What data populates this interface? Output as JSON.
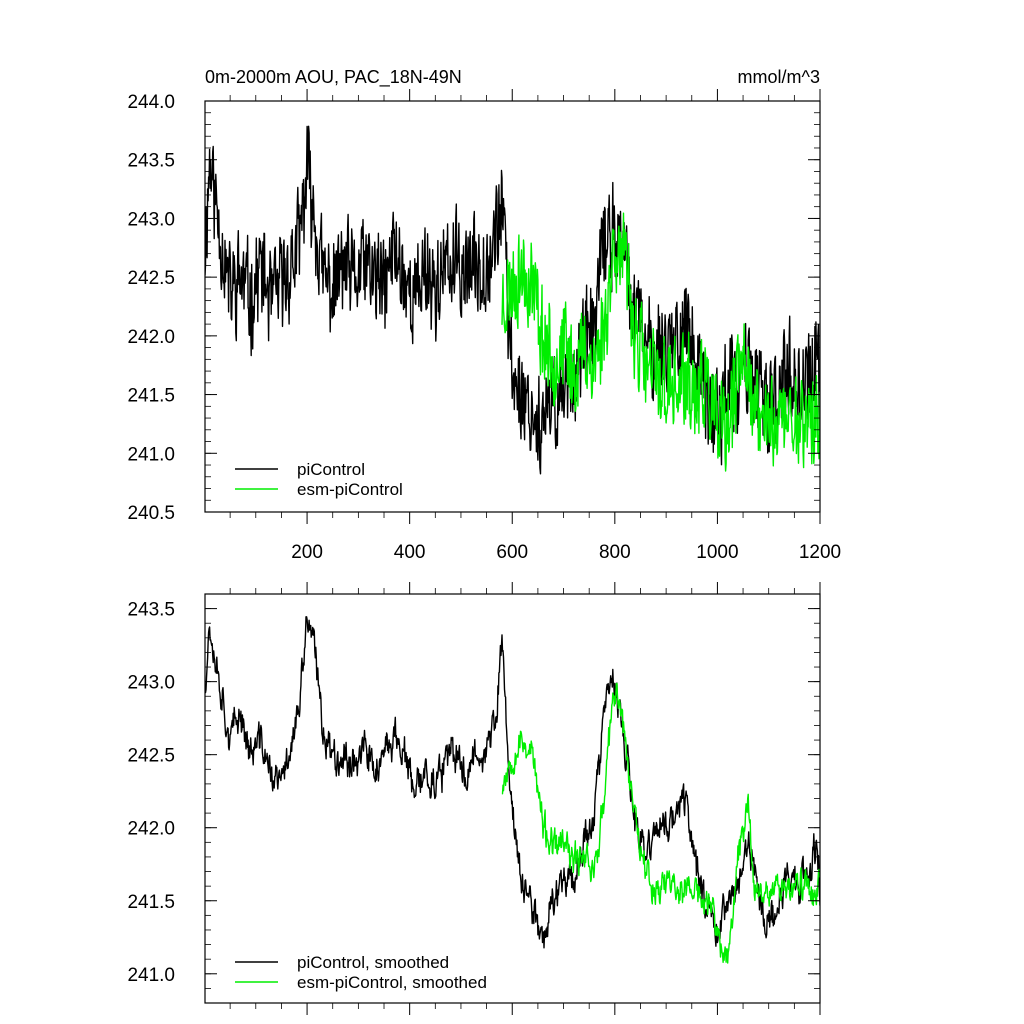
{
  "chart_data": [
    {
      "type": "line",
      "title": "0m-2000m AOU, PAC_18N-49N",
      "units": "mmol/m^3",
      "xlim": [
        1,
        1200
      ],
      "ylim": [
        240.5,
        244.0
      ],
      "x_ticks": [
        200,
        400,
        600,
        800,
        1000,
        1200
      ],
      "x_tick_labels": [
        "200",
        "400",
        "600",
        "800",
        "1000",
        "1200"
      ],
      "y_ticks": [
        240.5,
        241.0,
        241.5,
        242.0,
        242.5,
        243.0,
        243.5,
        244.0
      ],
      "y_tick_labels": [
        "240.5",
        "241.0",
        "241.5",
        "242.0",
        "242.5",
        "243.0",
        "243.5",
        "244.0"
      ],
      "legend_position": "bottom-left",
      "series": [
        {
          "name": "piControl",
          "color": "#000000",
          "x_start": 1,
          "x_end": 1200,
          "anchors": [
            [
              1,
              242.75
            ],
            [
              10,
              243.5
            ],
            [
              30,
              242.9
            ],
            [
              50,
              242.35
            ],
            [
              70,
              242.5
            ],
            [
              90,
              242.3
            ],
            [
              110,
              242.6
            ],
            [
              130,
              242.25
            ],
            [
              150,
              242.45
            ],
            [
              170,
              242.6
            ],
            [
              185,
              242.8
            ],
            [
              200,
              243.4
            ],
            [
              215,
              243.0
            ],
            [
              230,
              242.5
            ],
            [
              250,
              242.4
            ],
            [
              270,
              242.6
            ],
            [
              290,
              242.45
            ],
            [
              310,
              242.6
            ],
            [
              330,
              242.5
            ],
            [
              350,
              242.4
            ],
            [
              370,
              242.75
            ],
            [
              390,
              242.5
            ],
            [
              410,
              242.3
            ],
            [
              430,
              242.6
            ],
            [
              450,
              242.4
            ],
            [
              470,
              242.55
            ],
            [
              490,
              242.6
            ],
            [
              510,
              242.55
            ],
            [
              530,
              242.6
            ],
            [
              550,
              242.65
            ],
            [
              570,
              242.9
            ],
            [
              580,
              243.2
            ],
            [
              590,
              242.3
            ],
            [
              600,
              241.7
            ],
            [
              620,
              241.5
            ],
            [
              640,
              241.35
            ],
            [
              660,
              241.2
            ],
            [
              680,
              241.4
            ],
            [
              700,
              241.6
            ],
            [
              720,
              241.7
            ],
            [
              740,
              241.9
            ],
            [
              760,
              242.1
            ],
            [
              780,
              242.8
            ],
            [
              800,
              242.9
            ],
            [
              820,
              242.6
            ],
            [
              840,
              242.2
            ],
            [
              860,
              241.9
            ],
            [
              880,
              241.9
            ],
            [
              900,
              241.95
            ],
            [
              920,
              242.0
            ],
            [
              940,
              242.1
            ],
            [
              960,
              241.7
            ],
            [
              980,
              241.4
            ],
            [
              1000,
              241.3
            ],
            [
              1020,
              241.6
            ],
            [
              1040,
              241.5
            ],
            [
              1060,
              241.8
            ],
            [
              1080,
              241.5
            ],
            [
              1100,
              241.3
            ],
            [
              1120,
              241.6
            ],
            [
              1140,
              241.7
            ],
            [
              1160,
              241.6
            ],
            [
              1180,
              241.6
            ],
            [
              1195,
              241.8
            ],
            [
              1200,
              241.3
            ]
          ],
          "noise_amplitude": 0.5,
          "seed": 11
        },
        {
          "name": "esm-piControl",
          "color": "#00ee00",
          "x_start": 580,
          "x_end": 1200,
          "anchors": [
            [
              580,
              242.3
            ],
            [
              600,
              242.45
            ],
            [
              620,
              242.55
            ],
            [
              640,
              242.45
            ],
            [
              660,
              242.0
            ],
            [
              680,
              241.8
            ],
            [
              700,
              241.9
            ],
            [
              720,
              241.7
            ],
            [
              740,
              241.9
            ],
            [
              760,
              241.75
            ],
            [
              780,
              242.1
            ],
            [
              800,
              242.85
            ],
            [
              820,
              242.55
            ],
            [
              840,
              242.05
            ],
            [
              860,
              241.7
            ],
            [
              880,
              241.65
            ],
            [
              900,
              241.55
            ],
            [
              920,
              241.55
            ],
            [
              940,
              241.6
            ],
            [
              960,
              241.45
            ],
            [
              980,
              241.6
            ],
            [
              1000,
              241.15
            ],
            [
              1020,
              241.15
            ],
            [
              1040,
              241.65
            ],
            [
              1060,
              241.9
            ],
            [
              1070,
              241.3
            ]
          ],
          "noise_amplitude": 0.48,
          "seed": 23
        }
      ]
    },
    {
      "type": "line",
      "title": "",
      "xlim": [
        1,
        1200
      ],
      "ylim": [
        240.8,
        243.6
      ],
      "x_ticks": [
        200,
        400,
        600,
        800,
        1000,
        1200
      ],
      "x_tick_labels": [],
      "y_ticks": [
        241.0,
        241.5,
        242.0,
        242.5,
        243.0,
        243.5
      ],
      "y_tick_labels": [
        "241.0",
        "241.5",
        "242.0",
        "242.5",
        "243.0",
        "243.5"
      ],
      "legend_position": "bottom-left",
      "series": [
        {
          "name": "piControl, smoothed",
          "color": "#000000",
          "x_start": 1,
          "x_end": 1200,
          "anchors": [
            [
              1,
              243.0
            ],
            [
              10,
              243.4
            ],
            [
              30,
              243.0
            ],
            [
              50,
              242.6
            ],
            [
              70,
              242.8
            ],
            [
              90,
              242.5
            ],
            [
              110,
              242.6
            ],
            [
              130,
              242.35
            ],
            [
              150,
              242.3
            ],
            [
              170,
              242.6
            ],
            [
              185,
              242.8
            ],
            [
              200,
              243.45
            ],
            [
              215,
              243.2
            ],
            [
              230,
              242.7
            ],
            [
              250,
              242.5
            ],
            [
              270,
              242.5
            ],
            [
              290,
              242.45
            ],
            [
              310,
              242.55
            ],
            [
              330,
              242.4
            ],
            [
              350,
              242.45
            ],
            [
              370,
              242.65
            ],
            [
              390,
              242.5
            ],
            [
              410,
              242.2
            ],
            [
              430,
              242.4
            ],
            [
              450,
              242.3
            ],
            [
              470,
              242.45
            ],
            [
              490,
              242.5
            ],
            [
              510,
              242.35
            ],
            [
              530,
              242.55
            ],
            [
              550,
              242.5
            ],
            [
              570,
              242.8
            ],
            [
              580,
              243.3
            ],
            [
              590,
              242.6
            ],
            [
              600,
              242.1
            ],
            [
              620,
              241.6
            ],
            [
              640,
              241.45
            ],
            [
              660,
              241.25
            ],
            [
              680,
              241.5
            ],
            [
              700,
              241.7
            ],
            [
              720,
              241.65
            ],
            [
              740,
              241.9
            ],
            [
              760,
              242.1
            ],
            [
              780,
              242.8
            ],
            [
              790,
              243.0
            ],
            [
              800,
              242.95
            ],
            [
              820,
              242.55
            ],
            [
              840,
              242.0
            ],
            [
              860,
              241.8
            ],
            [
              880,
              242.0
            ],
            [
              900,
              242.0
            ],
            [
              920,
              242.1
            ],
            [
              940,
              242.2
            ],
            [
              960,
              241.7
            ],
            [
              980,
              241.5
            ],
            [
              1000,
              241.3
            ],
            [
              1020,
              241.5
            ],
            [
              1040,
              241.6
            ],
            [
              1060,
              241.9
            ],
            [
              1080,
              241.55
            ],
            [
              1100,
              241.3
            ],
            [
              1120,
              241.5
            ],
            [
              1140,
              241.7
            ],
            [
              1160,
              241.6
            ],
            [
              1180,
              241.7
            ],
            [
              1195,
              241.9
            ],
            [
              1200,
              241.55
            ]
          ],
          "noise_amplitude": 0.2,
          "seed": 37
        },
        {
          "name": "esm-piControl, smoothed",
          "color": "#00ee00",
          "x_start": 580,
          "x_end": 1200,
          "anchors": [
            [
              580,
              242.3
            ],
            [
              600,
              242.5
            ],
            [
              620,
              242.6
            ],
            [
              640,
              242.5
            ],
            [
              660,
              242.0
            ],
            [
              680,
              241.85
            ],
            [
              700,
              241.9
            ],
            [
              720,
              241.75
            ],
            [
              740,
              241.85
            ],
            [
              760,
              241.7
            ],
            [
              780,
              242.2
            ],
            [
              795,
              242.85
            ],
            [
              810,
              242.9
            ],
            [
              830,
              242.3
            ],
            [
              850,
              241.9
            ],
            [
              870,
              241.6
            ],
            [
              890,
              241.6
            ],
            [
              910,
              241.65
            ],
            [
              930,
              241.55
            ],
            [
              950,
              241.6
            ],
            [
              970,
              241.5
            ],
            [
              990,
              241.45
            ],
            [
              1010,
              241.15
            ],
            [
              1020,
              241.05
            ],
            [
              1040,
              241.8
            ],
            [
              1060,
              242.2
            ],
            [
              1070,
              241.6
            ]
          ],
          "noise_amplitude": 0.18,
          "seed": 53
        }
      ]
    }
  ]
}
